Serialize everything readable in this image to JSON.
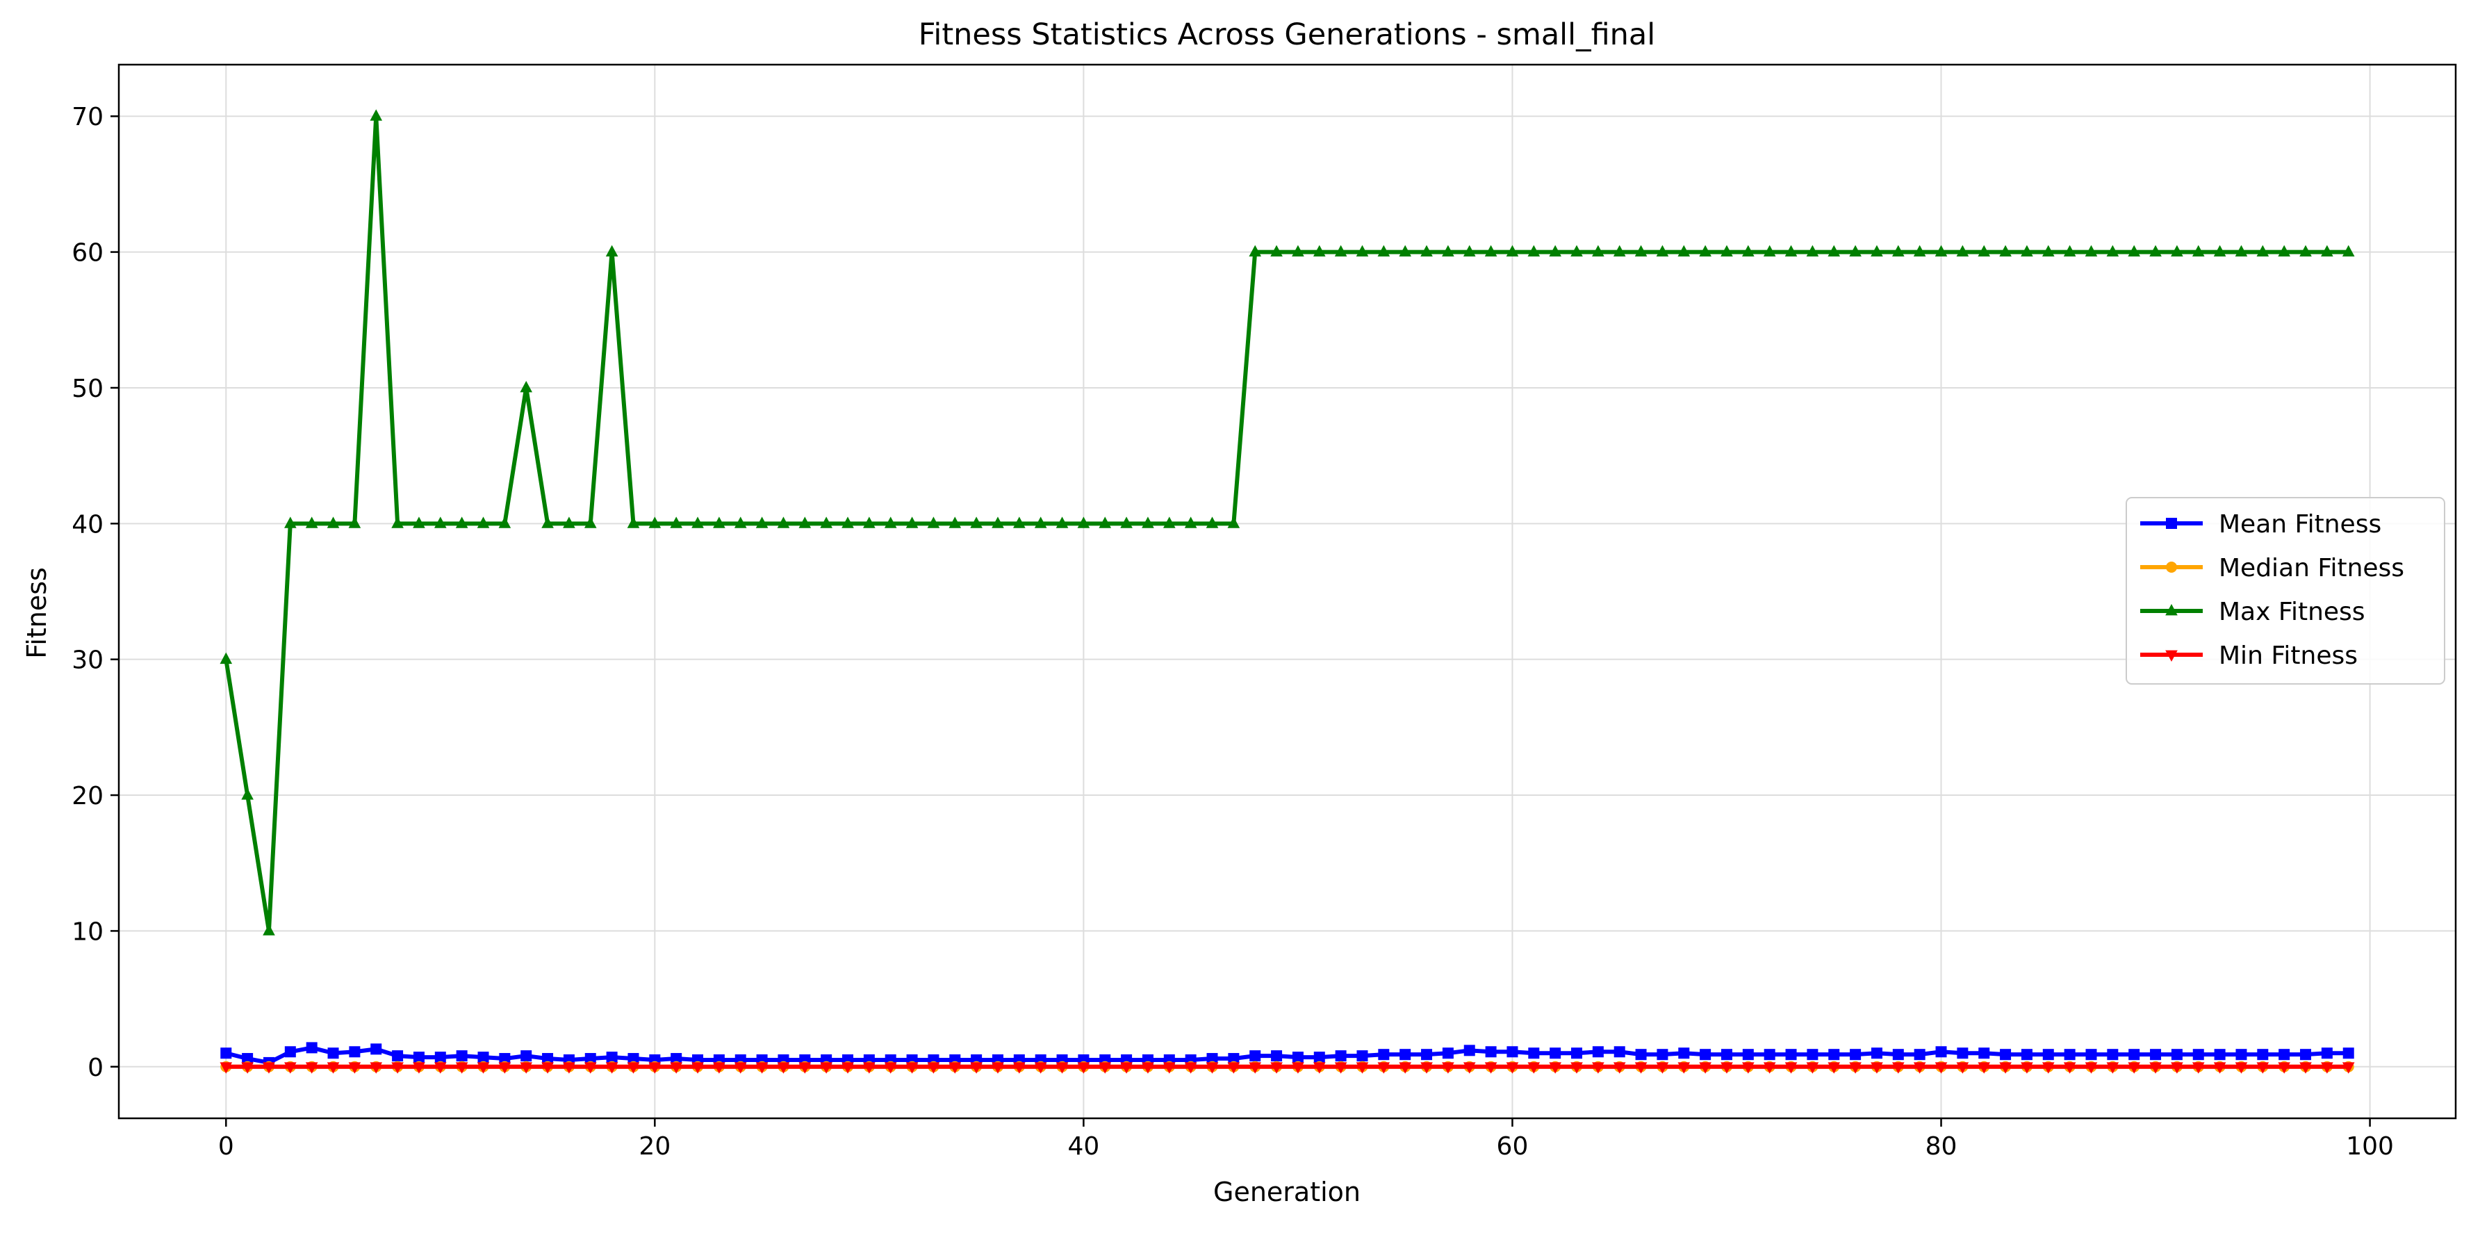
{
  "chart_data": {
    "type": "line",
    "title": "Fitness Statistics Across Generations - small_final",
    "xlabel": "Generation",
    "ylabel": "Fitness",
    "xlim": [
      -5,
      104
    ],
    "ylim": [
      -3.8,
      73.8
    ],
    "xticks": [
      0,
      20,
      40,
      60,
      80,
      100
    ],
    "yticks": [
      0,
      10,
      20,
      30,
      40,
      50,
      60,
      70
    ],
    "grid": true,
    "legend_position": "center-right",
    "x": [
      0,
      1,
      2,
      3,
      4,
      5,
      6,
      7,
      8,
      9,
      10,
      11,
      12,
      13,
      14,
      15,
      16,
      17,
      18,
      19,
      20,
      21,
      22,
      23,
      24,
      25,
      26,
      27,
      28,
      29,
      30,
      31,
      32,
      33,
      34,
      35,
      36,
      37,
      38,
      39,
      40,
      41,
      42,
      43,
      44,
      45,
      46,
      47,
      48,
      49,
      50,
      51,
      52,
      53,
      54,
      55,
      56,
      57,
      58,
      59,
      60,
      61,
      62,
      63,
      64,
      65,
      66,
      67,
      68,
      69,
      70,
      71,
      72,
      73,
      74,
      75,
      76,
      77,
      78,
      79,
      80,
      81,
      82,
      83,
      84,
      85,
      86,
      87,
      88,
      89,
      90,
      91,
      92,
      93,
      94,
      95,
      96,
      97,
      98,
      99
    ],
    "series": [
      {
        "name": "Mean Fitness",
        "color": "#0000ff",
        "marker": "square",
        "values": [
          1.0,
          0.6,
          0.3,
          1.1,
          1.4,
          1.0,
          1.1,
          1.3,
          0.8,
          0.7,
          0.7,
          0.8,
          0.7,
          0.6,
          0.8,
          0.6,
          0.5,
          0.6,
          0.7,
          0.6,
          0.5,
          0.6,
          0.5,
          0.5,
          0.5,
          0.5,
          0.5,
          0.5,
          0.5,
          0.5,
          0.5,
          0.5,
          0.5,
          0.5,
          0.5,
          0.5,
          0.5,
          0.5,
          0.5,
          0.5,
          0.5,
          0.5,
          0.5,
          0.5,
          0.5,
          0.5,
          0.6,
          0.6,
          0.8,
          0.8,
          0.7,
          0.7,
          0.8,
          0.8,
          0.9,
          0.9,
          0.9,
          1.0,
          1.2,
          1.1,
          1.1,
          1.0,
          1.0,
          1.0,
          1.1,
          1.1,
          0.9,
          0.9,
          1.0,
          0.9,
          0.9,
          0.9,
          0.9,
          0.9,
          0.9,
          0.9,
          0.9,
          1.0,
          0.9,
          0.9,
          1.1,
          1.0,
          1.0,
          0.9,
          0.9,
          0.9,
          0.9,
          0.9,
          0.9,
          0.9,
          0.9,
          0.9,
          0.9,
          0.9,
          0.9,
          0.9,
          0.9,
          0.9,
          1.0,
          1.0
        ]
      },
      {
        "name": "Median Fitness",
        "color": "#ffa500",
        "marker": "circle",
        "values": [
          0,
          0,
          0,
          0,
          0,
          0,
          0,
          0,
          0,
          0,
          0,
          0,
          0,
          0,
          0,
          0,
          0,
          0,
          0,
          0,
          0,
          0,
          0,
          0,
          0,
          0,
          0,
          0,
          0,
          0,
          0,
          0,
          0,
          0,
          0,
          0,
          0,
          0,
          0,
          0,
          0,
          0,
          0,
          0,
          0,
          0,
          0,
          0,
          0,
          0,
          0,
          0,
          0,
          0,
          0,
          0,
          0,
          0,
          0,
          0,
          0,
          0,
          0,
          0,
          0,
          0,
          0,
          0,
          0,
          0,
          0,
          0,
          0,
          0,
          0,
          0,
          0,
          0,
          0,
          0,
          0,
          0,
          0,
          0,
          0,
          0,
          0,
          0,
          0,
          0,
          0,
          0,
          0,
          0,
          0,
          0,
          0,
          0,
          0,
          0
        ]
      },
      {
        "name": "Max Fitness",
        "color": "#008000",
        "marker": "triangle-up",
        "values": [
          30,
          20,
          10,
          40,
          40,
          40,
          40,
          70,
          40,
          40,
          40,
          40,
          40,
          40,
          50,
          40,
          40,
          40,
          60,
          40,
          40,
          40,
          40,
          40,
          40,
          40,
          40,
          40,
          40,
          40,
          40,
          40,
          40,
          40,
          40,
          40,
          40,
          40,
          40,
          40,
          40,
          40,
          40,
          40,
          40,
          40,
          40,
          40,
          60,
          60,
          60,
          60,
          60,
          60,
          60,
          60,
          60,
          60,
          60,
          60,
          60,
          60,
          60,
          60,
          60,
          60,
          60,
          60,
          60,
          60,
          60,
          60,
          60,
          60,
          60,
          60,
          60,
          60,
          60,
          60,
          60,
          60,
          60,
          60,
          60,
          60,
          60,
          60,
          60,
          60,
          60,
          60,
          60,
          60,
          60,
          60,
          60,
          60,
          60,
          60
        ]
      },
      {
        "name": "Min Fitness",
        "color": "#ff0000",
        "marker": "triangle-down",
        "values": [
          0,
          0,
          0,
          0,
          0,
          0,
          0,
          0,
          0,
          0,
          0,
          0,
          0,
          0,
          0,
          0,
          0,
          0,
          0,
          0,
          0,
          0,
          0,
          0,
          0,
          0,
          0,
          0,
          0,
          0,
          0,
          0,
          0,
          0,
          0,
          0,
          0,
          0,
          0,
          0,
          0,
          0,
          0,
          0,
          0,
          0,
          0,
          0,
          0,
          0,
          0,
          0,
          0,
          0,
          0,
          0,
          0,
          0,
          0,
          0,
          0,
          0,
          0,
          0,
          0,
          0,
          0,
          0,
          0,
          0,
          0,
          0,
          0,
          0,
          0,
          0,
          0,
          0,
          0,
          0,
          0,
          0,
          0,
          0,
          0,
          0,
          0,
          0,
          0,
          0,
          0,
          0,
          0,
          0,
          0,
          0,
          0,
          0,
          0,
          0
        ]
      }
    ]
  }
}
